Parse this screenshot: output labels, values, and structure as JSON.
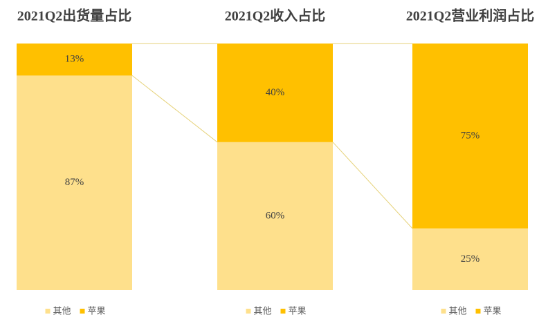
{
  "chart_data": [
    {
      "type": "bar",
      "title": "2021Q2出货量占比",
      "series": [
        {
          "name": "其他",
          "color": "#FEE08C",
          "values": [
            87
          ],
          "value_labels": [
            "87%"
          ]
        },
        {
          "name": "苹果",
          "color": "#FFC000",
          "values": [
            13
          ],
          "value_labels": [
            "13%"
          ]
        }
      ]
    },
    {
      "type": "bar",
      "title": "2021Q2收入占比",
      "series": [
        {
          "name": "其他",
          "color": "#FEE08C",
          "values": [
            60
          ],
          "value_labels": [
            "60%"
          ]
        },
        {
          "name": "苹果",
          "color": "#FFC000",
          "values": [
            40
          ],
          "value_labels": [
            "40%"
          ]
        }
      ]
    },
    {
      "type": "bar",
      "title": "2021Q2营业利润占比",
      "series": [
        {
          "name": "其他",
          "color": "#FEE08C",
          "values": [
            25
          ],
          "value_labels": [
            "25%"
          ]
        },
        {
          "name": "苹果",
          "color": "#FFC000",
          "values": [
            75
          ],
          "value_labels": [
            "75%"
          ]
        }
      ]
    }
  ]
}
